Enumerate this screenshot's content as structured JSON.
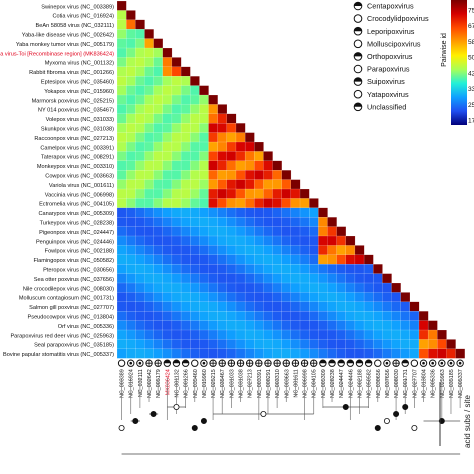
{
  "chart_data": {
    "type": "heatmap",
    "color_scale": {
      "label": "Pairwise id",
      "ticks": [
        75,
        67,
        58,
        50,
        42,
        33,
        25,
        17
      ],
      "colors": [
        "#7a0000",
        "#d50000",
        "#ff4a00",
        "#ff9e00",
        "#fff000",
        "#a8ff57",
        "#22f0d8",
        "#0fa0ff",
        "#1f4ef0",
        "#00007a"
      ]
    },
    "rows": [
      {
        "label": "Swinepox virus (NC_003389)",
        "highlight": false
      },
      {
        "label": "Cotia virus (NC_016924)",
        "highlight": false
      },
      {
        "label": "BeAn 58058 virus (NC_032111)",
        "highlight": false
      },
      {
        "label": "Yaba-like disease virus (NC_002642)",
        "highlight": false
      },
      {
        "label": "Yaba monkey tumor virus (NC_005179)",
        "highlight": false
      },
      {
        "label": "Myxoma virus-Toi [Recombinase region] (MK836424)",
        "highlight": true
      },
      {
        "label": "Myxoma virus (NC_001132)",
        "highlight": false
      },
      {
        "label": "Rabbit fibroma virus (NC_001266)",
        "highlight": false
      },
      {
        "label": "Eptesipox virus (NC_035460)",
        "highlight": false
      },
      {
        "label": "Yokapox virus (NC_015960)",
        "highlight": false
      },
      {
        "label": "Marmorsk poxvirus (NC_025215)",
        "highlight": false
      },
      {
        "label": "NY 014 poxvirus (NC_035467)",
        "highlight": false
      },
      {
        "label": "Volepox virus (NC_031033)",
        "highlight": false
      },
      {
        "label": "Skunkpox virus (NC_031038)",
        "highlight": false
      },
      {
        "label": "Raccoonpox virus (NC_027213)",
        "highlight": false
      },
      {
        "label": "Camelpox virus (NC_003391)",
        "highlight": false
      },
      {
        "label": "Taterapox virus (NC_008291)",
        "highlight": false
      },
      {
        "label": "Monkeypox virus (NC_003310)",
        "highlight": false
      },
      {
        "label": "Cowpox virus (NC_003663)",
        "highlight": false
      },
      {
        "label": "Variola virus (NC_001611)",
        "highlight": false
      },
      {
        "label": "Vaccinia virus (NC_006998)",
        "highlight": false
      },
      {
        "label": "Ectromelia virus (NC_004105)",
        "highlight": false
      },
      {
        "label": "Canarypox virus (NC_005309)",
        "highlight": false
      },
      {
        "label": "Turkeypox virus (NC_028238)",
        "highlight": false
      },
      {
        "label": "Pigeonpox virus (NC_024447)",
        "highlight": false
      },
      {
        "label": "Penguinpox virus (NC_024446)",
        "highlight": false
      },
      {
        "label": "Fowlpox virus (NC_002188)",
        "highlight": false
      },
      {
        "label": "Flamingopox virus (NC_050582)",
        "highlight": false
      },
      {
        "label": "Pteropox virus (NC_030656)",
        "highlight": false
      },
      {
        "label": "Sea otter poxvirus (NC_037656)",
        "highlight": false
      },
      {
        "label": "Nile crocodilepox virus (NC_008030)",
        "highlight": false
      },
      {
        "label": "Molluscum contagiosum (NC_001731)",
        "highlight": false
      },
      {
        "label": "Salmon gill poxvirus (NC_027707)",
        "highlight": false
      },
      {
        "label": "Pseudocowpox virus (NC_013804)",
        "highlight": false
      },
      {
        "label": "Orf virus (NC_005336)",
        "highlight": false
      },
      {
        "label": "Parapoxvirus red deer virus (NC_025963)",
        "highlight": false
      },
      {
        "label": "Seal parapoxvirus (NC_035185)",
        "highlight": false
      },
      {
        "label": "Bovine papular stomatitis virus (NC_005337)",
        "highlight": false
      }
    ],
    "columns": [
      "NC_003389",
      "NC_016924",
      "NC_032111",
      "NC_002642",
      "NC_005179",
      "MK836424",
      "NC_001132",
      "NC_001266",
      "NC_035460",
      "NC_015960",
      "NC_025215",
      "NC_035467",
      "NC_031033",
      "NC_031038",
      "NC_027213",
      "NC_003391",
      "NC_008291",
      "NC_003310",
      "NC_003663",
      "NC_001611",
      "NC_006998",
      "NC_004105",
      "NC_005309",
      "NC_028238",
      "NC_024447",
      "NC_024446",
      "NC_002188",
      "NC_050582",
      "NC_030656",
      "NC_037656",
      "NC_008030",
      "NC_001731",
      "NC_027707",
      "NC_013804",
      "NC_005336",
      "NC_025963",
      "NC_035185",
      "NC_005337"
    ],
    "legend": {
      "items": [
        {
          "label": "Centapoxvirus",
          "marker": "half-circle"
        },
        {
          "label": "Crocodylidpoxvirus",
          "marker": "circle-cross"
        },
        {
          "label": "Leporipoxvirus",
          "marker": "circle-dots"
        },
        {
          "label": "Molluscipoxvirus",
          "marker": "circle-quarter"
        },
        {
          "label": "Orthopoxvirus",
          "marker": "circle-filled-half"
        },
        {
          "label": "Parapoxvirus",
          "marker": "circle-target"
        },
        {
          "label": "Suipoxvirus",
          "marker": "circle-quadrant"
        },
        {
          "label": "Yatapoxvirus",
          "marker": "circle-ring"
        },
        {
          "label": "Unclassified",
          "marker": "circle-dotted"
        }
      ],
      "placement": "top-right"
    },
    "tree_scale_label": "acid subs / site"
  }
}
